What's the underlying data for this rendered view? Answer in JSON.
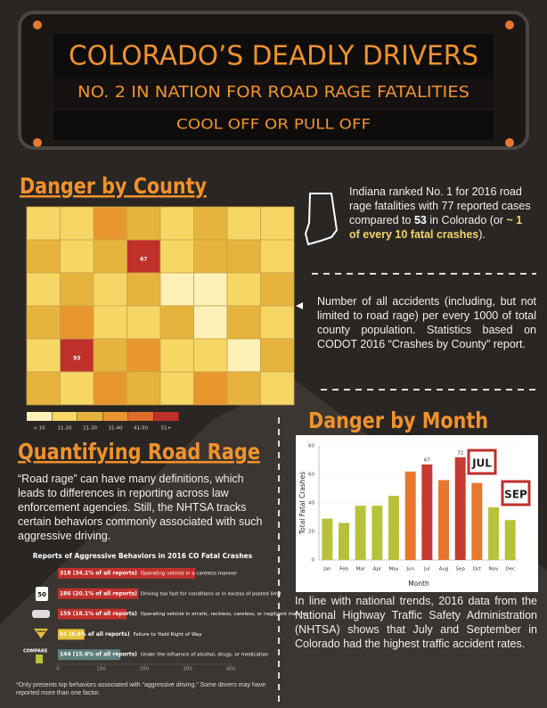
{
  "header": {
    "title": "COLORADO’S DEADLY DRIVERS",
    "subtitle": "NO. 2 IN NATION FOR ROAD RAGE FATALITIES",
    "tagline": "COOL OFF OR PULL OFF"
  },
  "danger_by_county": {
    "heading": "Danger by County",
    "indiana_note": [
      "Indiana ranked No. 1 for 2016 road rage fatalities with 77 reported cases compared to ",
      "53",
      " in Colorado (or ",
      "~ 1 of every 10 fatal crashes",
      ")."
    ],
    "map_note": "Number of all accidents (including, but not limited to road rage) per every 1000 of total county population. Statistics based on CODOT 2016 “Crashes by County” report.",
    "map_labels": [
      "67",
      "93"
    ],
    "legend": [
      {
        "label": "< 10",
        "color": "#fdf1b8"
      },
      {
        "label": "11-20",
        "color": "#f6d766"
      },
      {
        "label": "21-30",
        "color": "#e6b43c"
      },
      {
        "label": "31-40",
        "color": "#e8972f"
      },
      {
        "label": "41-50",
        "color": "#df6c29"
      },
      {
        "label": "51+",
        "color": "#c0302b"
      }
    ]
  },
  "quantifying_road_rage": {
    "heading": "Quantifying Road Rage",
    "text": "“Road rage” can have many definitions, which leads to differences in reporting across law enforcement agencies. Still, the NHTSA tracks certain behaviors commonly associated with such aggressive driving.",
    "icons": [
      "50",
      "YIELD",
      "COMPARE"
    ],
    "footnote": "*Only presents top behaviors associated with “aggressive driving.” Some drivers may have reported more than one factor."
  },
  "danger_by_month": {
    "heading": "Danger by Month",
    "icons": [
      "JUL",
      "SEP"
    ],
    "text": "In line with national trends, 2016 data from the National Highway Traffic Safety Administration (NHTSA) shows that July and September in Colorado had the highest traffic accident rates."
  },
  "chart_data": [
    {
      "type": "hbar",
      "title": "Reports of Aggressive Behaviors in 2016 CO Fatal Crashes",
      "categories": [
        "Operating vehicle in a careless manner",
        "Driving too fast for conditions or in excess of posted limit",
        "Operating vehicle in erratic, reckless, careless, or negligent manner",
        "Failure to Yield Right of Way",
        "Under the influence of alcohol, drugs, or medication"
      ],
      "values": [
        318,
        186,
        159,
        61,
        144
      ],
      "value_labels": [
        "318 (34.1% of all reports)",
        "186 (20.1% of all reports)",
        "159 (18.1% of all reports)",
        "61 (6.6% of all reports)",
        "144 (15.6% of all reports)"
      ],
      "colors": [
        "#c0302b",
        "#c0302b",
        "#c0302b",
        "#e6c23a",
        "#5e7f7a"
      ],
      "xlim": [
        0,
        400
      ],
      "xticks": [
        0,
        100,
        200,
        300,
        400
      ]
    },
    {
      "type": "bar",
      "x_label": "Month",
      "y_label": "Total Fatal Crashes",
      "categories": [
        "Jan",
        "Feb",
        "Mar",
        "Apr",
        "May",
        "Jun",
        "Jul",
        "Aug",
        "Sep",
        "Oct",
        "Nov",
        "Dec"
      ],
      "values": [
        29,
        26,
        38,
        38,
        45,
        62,
        67,
        56,
        72,
        54,
        37,
        28
      ],
      "value_labels": [
        null,
        null,
        null,
        null,
        null,
        null,
        "67",
        null,
        "72",
        null,
        null,
        null
      ],
      "colors": [
        "#b7c23a",
        "#b7c23a",
        "#b7c23a",
        "#b7c23a",
        "#b7c23a",
        "#e8772e",
        "#c63a32",
        "#e8772e",
        "#c63a32",
        "#e8772e",
        "#b7c23a",
        "#b7c23a"
      ],
      "ylim": [
        0,
        80
      ],
      "yticks": [
        0,
        20,
        40,
        60,
        80
      ]
    }
  ]
}
